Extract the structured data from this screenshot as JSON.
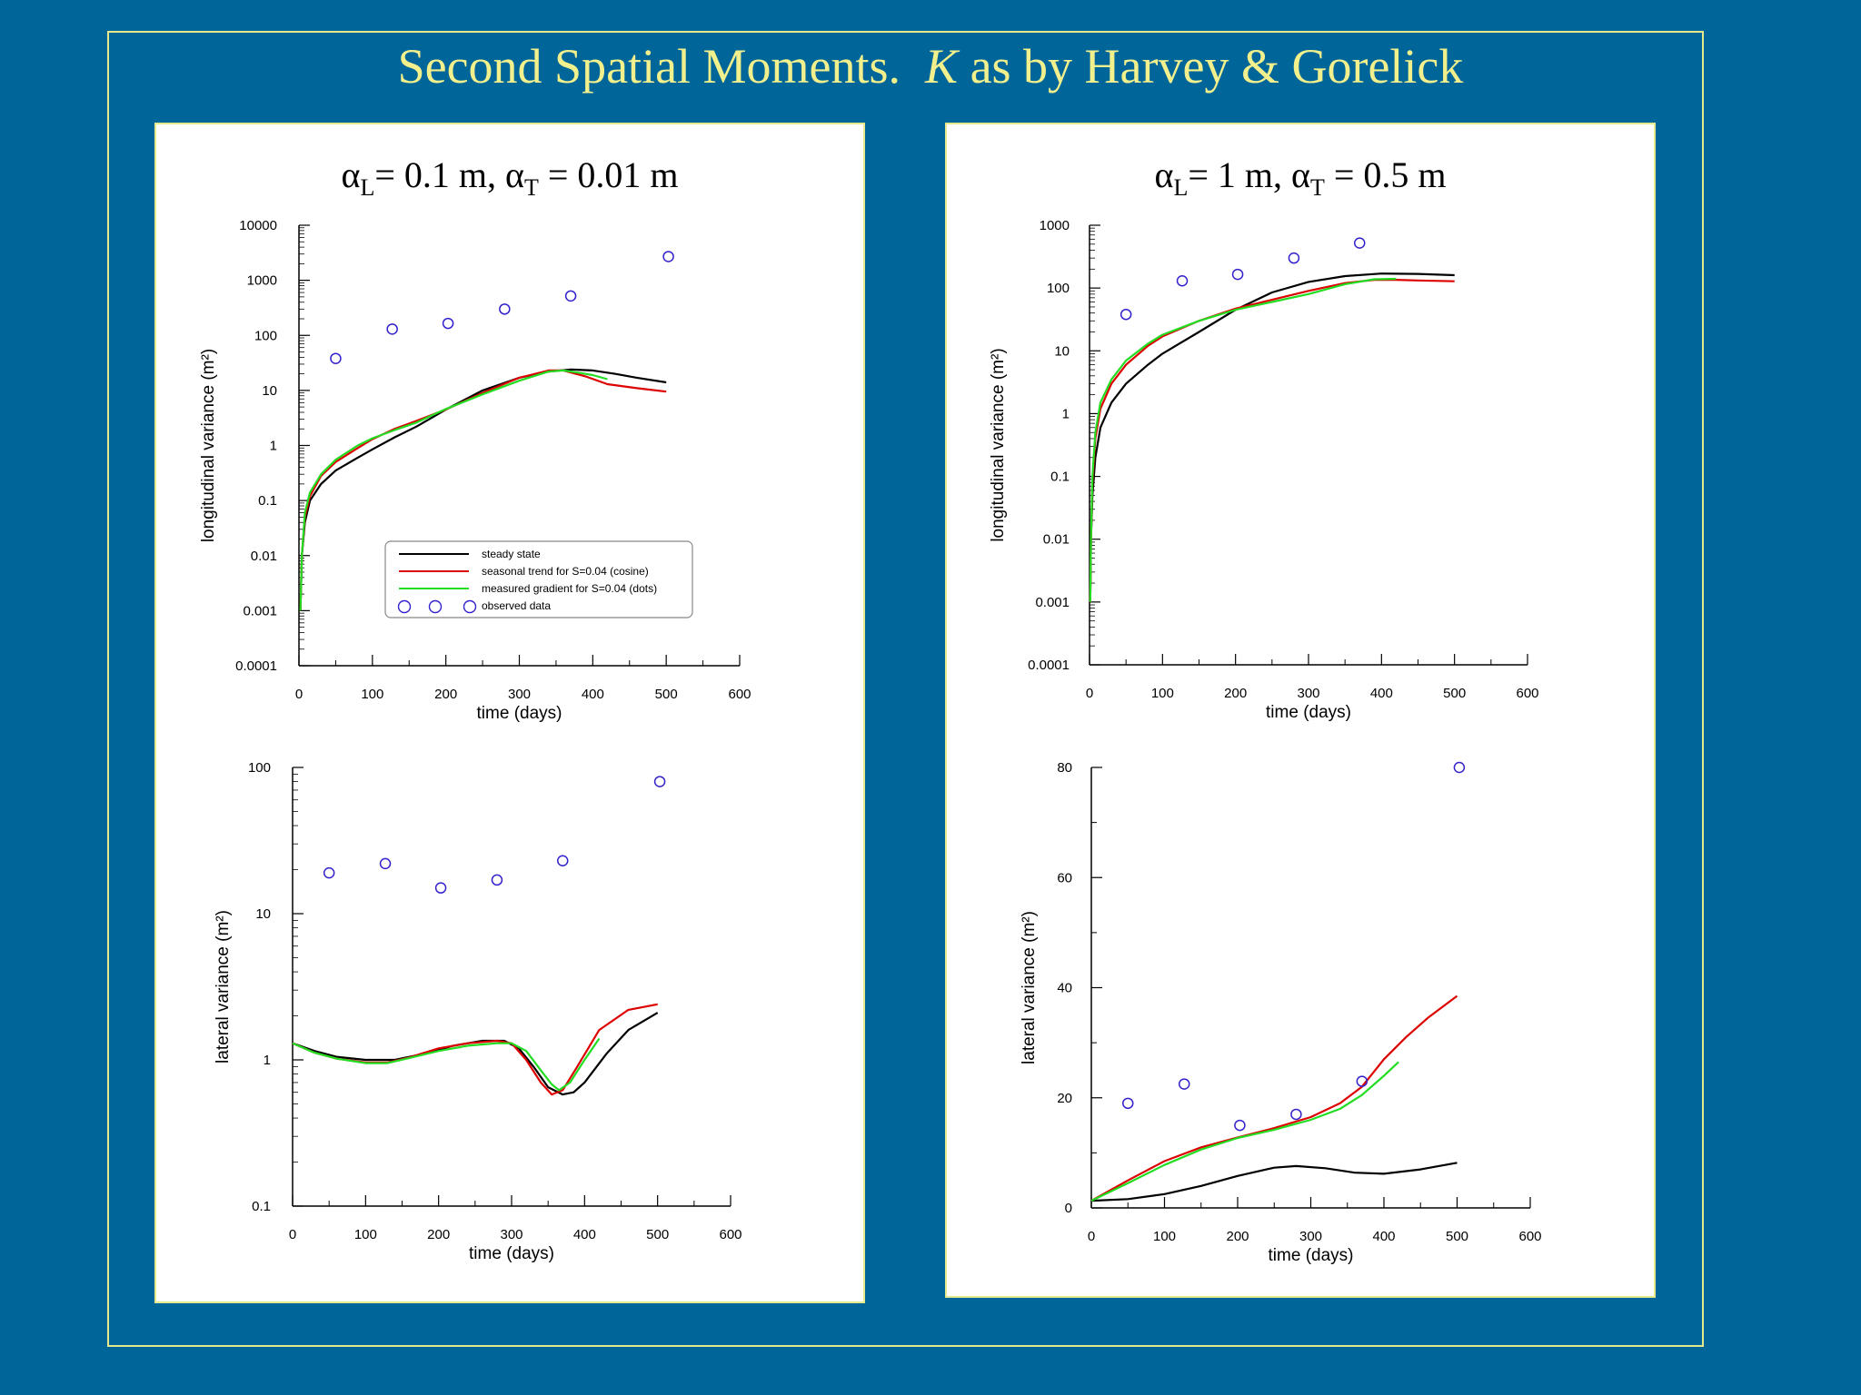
{
  "slide": {
    "title_main": "Second Spatial Moments.",
    "title_italic": "K",
    "title_rest": "as by Harvey & Gorelick"
  },
  "panels": [
    {
      "title_alpha_l": "= 0.1 m,",
      "title_alpha_t": "= 0.01 m"
    },
    {
      "title_alpha_l": "= 1 m,",
      "title_alpha_t": "= 0.5 m"
    }
  ],
  "chart_data": [
    {
      "id": "left-top",
      "type": "line",
      "xlabel": "time  (days)",
      "ylabel": "longitudinal  variance  (m²)",
      "yscale": "log",
      "xlim": [
        0,
        600
      ],
      "ylim": [
        0.0001,
        10000
      ],
      "xticks": [
        0,
        100,
        200,
        300,
        400,
        500,
        600
      ],
      "yticks": [
        0.0001,
        0.001,
        0.01,
        0.1,
        1,
        10,
        100,
        1000,
        10000
      ],
      "ytick_labels": [
        "0.0001",
        "0.001",
        "0.01",
        "0.1",
        "1",
        "10",
        "100",
        "1000",
        "10000"
      ],
      "legend": [
        "steady state",
        "seasonal trend for S=0.04  (cosine)",
        "measured gradient  for S=0.04  (dots)",
        "observed data"
      ],
      "legend_position": "lower-center",
      "series": [
        {
          "name": "steady state",
          "color": "#000000",
          "x": [
            2,
            4,
            8,
            15,
            30,
            50,
            80,
            100,
            130,
            160,
            200,
            250,
            300,
            340,
            370,
            400,
            430,
            460,
            500
          ],
          "y": [
            0.001,
            0.01,
            0.04,
            0.1,
            0.2,
            0.35,
            0.6,
            0.85,
            1.4,
            2.2,
            4.5,
            10,
            17,
            22,
            24,
            23,
            20,
            17,
            14
          ]
        },
        {
          "name": "seasonal trend for S=0.04  (cosine)",
          "color": "#dd0000",
          "x": [
            2,
            4,
            8,
            15,
            30,
            50,
            80,
            100,
            130,
            160,
            200,
            250,
            300,
            340,
            360,
            390,
            420,
            460,
            500
          ],
          "y": [
            0.001,
            0.01,
            0.05,
            0.12,
            0.28,
            0.5,
            0.9,
            1.3,
            2.0,
            2.8,
            4.5,
            9,
            17,
            23,
            23,
            18,
            13,
            11,
            9.5
          ]
        },
        {
          "name": "measured gradient  for S=0.04  (dots)",
          "color": "#22dd22",
          "x": [
            2,
            4,
            8,
            15,
            30,
            50,
            80,
            100,
            130,
            160,
            200,
            250,
            300,
            340,
            360,
            380,
            400,
            420
          ],
          "y": [
            0.001,
            0.01,
            0.06,
            0.14,
            0.3,
            0.55,
            1.0,
            1.35,
            1.9,
            2.6,
            4.6,
            8.5,
            15,
            22,
            23,
            21,
            19,
            16
          ]
        }
      ],
      "observed": {
        "x": [
          50,
          127,
          203,
          280,
          370,
          503
        ],
        "y": [
          38,
          130,
          165,
          300,
          520,
          2700
        ]
      }
    },
    {
      "id": "left-bottom",
      "type": "line",
      "xlabel": "time  (days)",
      "ylabel": "lateral  variance  (m²)",
      "yscale": "log",
      "xlim": [
        0,
        600
      ],
      "ylim": [
        0.1,
        100
      ],
      "xticks": [
        0,
        100,
        200,
        300,
        400,
        500,
        600
      ],
      "yticks": [
        0.1,
        1,
        10,
        100
      ],
      "ytick_labels": [
        "0.1",
        "1",
        "10",
        "100"
      ],
      "series": [
        {
          "name": "steady state",
          "color": "#000000",
          "x": [
            0,
            30,
            60,
            100,
            140,
            180,
            220,
            260,
            290,
            310,
            330,
            350,
            370,
            385,
            400,
            430,
            460,
            500
          ],
          "y": [
            1.3,
            1.15,
            1.05,
            1.0,
            1.0,
            1.1,
            1.25,
            1.35,
            1.35,
            1.2,
            0.9,
            0.65,
            0.58,
            0.6,
            0.7,
            1.1,
            1.6,
            2.1
          ]
        },
        {
          "name": "seasonal trend for S=0.04  (cosine)",
          "color": "#dd0000",
          "x": [
            0,
            30,
            60,
            100,
            130,
            160,
            200,
            240,
            280,
            300,
            320,
            340,
            355,
            370,
            390,
            420,
            460,
            500
          ],
          "y": [
            1.3,
            1.12,
            1.02,
            0.96,
            0.96,
            1.04,
            1.2,
            1.3,
            1.35,
            1.3,
            1.0,
            0.7,
            0.58,
            0.62,
            0.9,
            1.6,
            2.2,
            2.4
          ]
        },
        {
          "name": "measured gradient  for S=0.04  (dots)",
          "color": "#22dd22",
          "x": [
            0,
            30,
            60,
            100,
            130,
            160,
            200,
            240,
            280,
            300,
            320,
            340,
            355,
            365,
            380,
            400,
            420
          ],
          "y": [
            1.3,
            1.12,
            1.02,
            0.95,
            0.95,
            1.03,
            1.15,
            1.25,
            1.3,
            1.3,
            1.15,
            0.85,
            0.68,
            0.62,
            0.7,
            1.0,
            1.4
          ]
        }
      ],
      "observed": {
        "x": [
          50,
          127,
          203,
          280,
          370,
          503
        ],
        "y": [
          19,
          22,
          15,
          17,
          23,
          80
        ]
      }
    },
    {
      "id": "right-top",
      "type": "line",
      "xlabel": "time  (days)",
      "ylabel": "longitudinal  variance  (m²)",
      "yscale": "log",
      "xlim": [
        0,
        600
      ],
      "ylim": [
        0.0001,
        1000
      ],
      "xticks": [
        0,
        100,
        200,
        300,
        400,
        500,
        600
      ],
      "yticks": [
        0.0001,
        0.001,
        0.01,
        0.1,
        1,
        10,
        100,
        1000
      ],
      "ytick_labels": [
        "0.0001",
        "0.001",
        "0.01",
        "0.1",
        "1",
        "10",
        "100",
        "1000"
      ],
      "series": [
        {
          "name": "steady state",
          "color": "#000000",
          "x": [
            1,
            2,
            4,
            8,
            15,
            30,
            50,
            80,
            100,
            150,
            200,
            250,
            300,
            350,
            400,
            450,
            500
          ],
          "y": [
            0.001,
            0.01,
            0.05,
            0.2,
            0.6,
            1.5,
            3,
            6,
            9,
            20,
            45,
            85,
            125,
            155,
            170,
            168,
            160
          ]
        },
        {
          "name": "seasonal trend for S=0.04  (cosine)",
          "color": "#dd0000",
          "x": [
            1,
            2,
            4,
            8,
            15,
            30,
            50,
            80,
            100,
            150,
            200,
            250,
            300,
            350,
            390,
            420,
            450,
            500
          ],
          "y": [
            0.001,
            0.01,
            0.08,
            0.4,
            1.2,
            3,
            6,
            12,
            17,
            30,
            47,
            65,
            90,
            120,
            135,
            135,
            132,
            128
          ]
        },
        {
          "name": "measured gradient  for S=0.04  (dots)",
          "color": "#22dd22",
          "x": [
            1,
            2,
            4,
            8,
            15,
            30,
            50,
            80,
            100,
            150,
            200,
            250,
            300,
            350,
            390,
            420
          ],
          "y": [
            0.001,
            0.01,
            0.1,
            0.5,
            1.5,
            3.5,
            7,
            13,
            18,
            30,
            45,
            60,
            80,
            115,
            138,
            140
          ]
        }
      ],
      "observed": {
        "x": [
          50,
          127,
          203,
          280,
          370
        ],
        "y": [
          38,
          130,
          165,
          300,
          520
        ]
      }
    },
    {
      "id": "right-bottom",
      "type": "line",
      "xlabel": "time  (days)",
      "ylabel": "lateral  variance  (m²)",
      "yscale": "linear",
      "xlim": [
        0,
        600
      ],
      "ylim": [
        0,
        80
      ],
      "xticks": [
        0,
        100,
        200,
        300,
        400,
        500,
        600
      ],
      "yticks": [
        0,
        20,
        40,
        60,
        80
      ],
      "ytick_labels": [
        "0",
        "20",
        "40",
        "60",
        "80"
      ],
      "series": [
        {
          "name": "steady state",
          "color": "#000000",
          "x": [
            0,
            50,
            100,
            150,
            200,
            250,
            280,
            320,
            360,
            400,
            450,
            500
          ],
          "y": [
            1.3,
            1.6,
            2.5,
            4,
            5.8,
            7.3,
            7.6,
            7.2,
            6.4,
            6.2,
            7,
            8.2
          ]
        },
        {
          "name": "seasonal trend for S=0.04  (cosine)",
          "color": "#dd0000",
          "x": [
            0,
            50,
            100,
            150,
            200,
            250,
            300,
            340,
            370,
            400,
            430,
            460,
            500
          ],
          "y": [
            1.3,
            5,
            8.5,
            11,
            12.8,
            14.5,
            16.5,
            19,
            22,
            27,
            31,
            34.5,
            38.5
          ]
        },
        {
          "name": "measured gradient  for S=0.04  (dots)",
          "color": "#22dd22",
          "x": [
            0,
            50,
            100,
            150,
            200,
            250,
            300,
            340,
            370,
            400,
            420
          ],
          "y": [
            1.3,
            4.5,
            7.8,
            10.6,
            12.7,
            14.2,
            16,
            18,
            20.5,
            24,
            26.5
          ]
        }
      ],
      "observed": {
        "x": [
          50,
          127,
          203,
          280,
          370,
          503
        ],
        "y": [
          19,
          22.5,
          15,
          17,
          23,
          80
        ]
      }
    }
  ]
}
